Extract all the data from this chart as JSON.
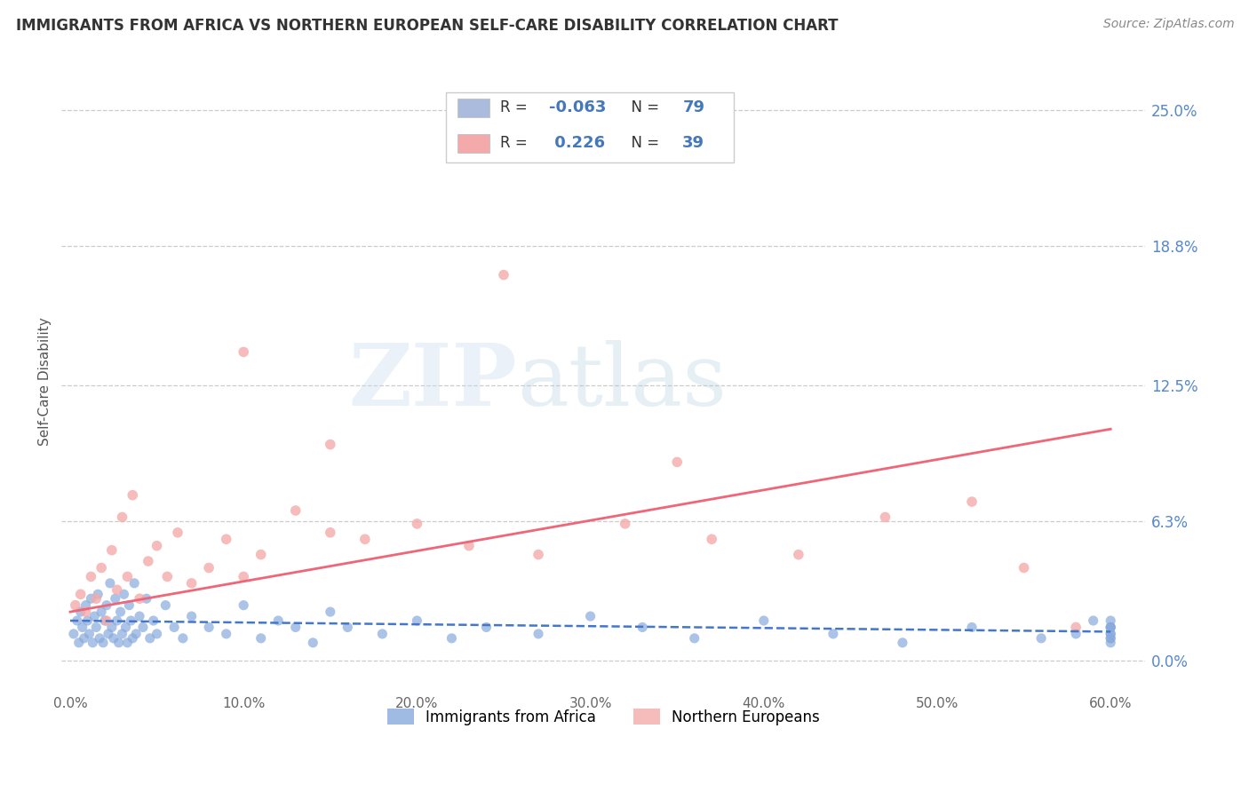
{
  "title": "IMMIGRANTS FROM AFRICA VS NORTHERN EUROPEAN SELF-CARE DISABILITY CORRELATION CHART",
  "source": "Source: ZipAtlas.com",
  "ylabel": "Self-Care Disability",
  "xlim": [
    -0.005,
    0.62
  ],
  "ylim": [
    -0.012,
    0.265
  ],
  "xticks": [
    0.0,
    0.1,
    0.2,
    0.3,
    0.4,
    0.5,
    0.6
  ],
  "xticklabels": [
    "0.0%",
    "10.0%",
    "20.0%",
    "30.0%",
    "40.0%",
    "50.0%",
    "60.0%"
  ],
  "ytick_positions": [
    0.0,
    0.063,
    0.125,
    0.188,
    0.25
  ],
  "ytick_labels_right": [
    "0.0%",
    "6.3%",
    "12.5%",
    "18.8%",
    "25.0%"
  ],
  "grid_color": "#cccccc",
  "background_color": "#ffffff",
  "blue_color": "#88aadd",
  "pink_color": "#f4aaaa",
  "blue_label": "Immigrants from Africa",
  "pink_label": "Northern Europeans",
  "R_blue": -0.063,
  "N_blue": 79,
  "R_pink": 0.226,
  "N_pink": 39,
  "watermark_text": "ZIPatlas",
  "blue_scatter_x": [
    0.002,
    0.004,
    0.005,
    0.006,
    0.007,
    0.008,
    0.009,
    0.01,
    0.011,
    0.012,
    0.013,
    0.014,
    0.015,
    0.016,
    0.017,
    0.018,
    0.019,
    0.02,
    0.021,
    0.022,
    0.023,
    0.024,
    0.025,
    0.026,
    0.027,
    0.028,
    0.029,
    0.03,
    0.031,
    0.032,
    0.033,
    0.034,
    0.035,
    0.036,
    0.037,
    0.038,
    0.04,
    0.042,
    0.044,
    0.046,
    0.048,
    0.05,
    0.055,
    0.06,
    0.065,
    0.07,
    0.08,
    0.09,
    0.1,
    0.11,
    0.12,
    0.13,
    0.14,
    0.15,
    0.16,
    0.18,
    0.2,
    0.22,
    0.24,
    0.27,
    0.3,
    0.33,
    0.36,
    0.4,
    0.44,
    0.48,
    0.52,
    0.56,
    0.58,
    0.59,
    0.6,
    0.6,
    0.6,
    0.6,
    0.6,
    0.6,
    0.6,
    0.6,
    0.6
  ],
  "blue_scatter_y": [
    0.012,
    0.018,
    0.008,
    0.022,
    0.015,
    0.01,
    0.025,
    0.018,
    0.012,
    0.028,
    0.008,
    0.02,
    0.015,
    0.03,
    0.01,
    0.022,
    0.008,
    0.018,
    0.025,
    0.012,
    0.035,
    0.015,
    0.01,
    0.028,
    0.018,
    0.008,
    0.022,
    0.012,
    0.03,
    0.015,
    0.008,
    0.025,
    0.018,
    0.01,
    0.035,
    0.012,
    0.02,
    0.015,
    0.028,
    0.01,
    0.018,
    0.012,
    0.025,
    0.015,
    0.01,
    0.02,
    0.015,
    0.012,
    0.025,
    0.01,
    0.018,
    0.015,
    0.008,
    0.022,
    0.015,
    0.012,
    0.018,
    0.01,
    0.015,
    0.012,
    0.02,
    0.015,
    0.01,
    0.018,
    0.012,
    0.008,
    0.015,
    0.01,
    0.012,
    0.018,
    0.015,
    0.01,
    0.008,
    0.012,
    0.018,
    0.015,
    0.01,
    0.012,
    0.015
  ],
  "pink_scatter_x": [
    0.003,
    0.006,
    0.009,
    0.012,
    0.015,
    0.018,
    0.021,
    0.024,
    0.027,
    0.03,
    0.033,
    0.036,
    0.04,
    0.045,
    0.05,
    0.056,
    0.062,
    0.07,
    0.08,
    0.09,
    0.1,
    0.11,
    0.13,
    0.15,
    0.17,
    0.2,
    0.23,
    0.27,
    0.32,
    0.37,
    0.42,
    0.47,
    0.52,
    0.55,
    0.58,
    0.1,
    0.15,
    0.25,
    0.35
  ],
  "pink_scatter_y": [
    0.025,
    0.03,
    0.022,
    0.038,
    0.028,
    0.042,
    0.018,
    0.05,
    0.032,
    0.065,
    0.038,
    0.075,
    0.028,
    0.045,
    0.052,
    0.038,
    0.058,
    0.035,
    0.042,
    0.055,
    0.038,
    0.048,
    0.068,
    0.058,
    0.055,
    0.062,
    0.052,
    0.048,
    0.062,
    0.055,
    0.048,
    0.065,
    0.072,
    0.042,
    0.015,
    0.14,
    0.098,
    0.175,
    0.09
  ],
  "blue_line_x": [
    0.0,
    0.6
  ],
  "blue_line_y": [
    0.018,
    0.013
  ],
  "pink_line_x": [
    0.0,
    0.6
  ],
  "pink_line_y": [
    0.022,
    0.105
  ]
}
